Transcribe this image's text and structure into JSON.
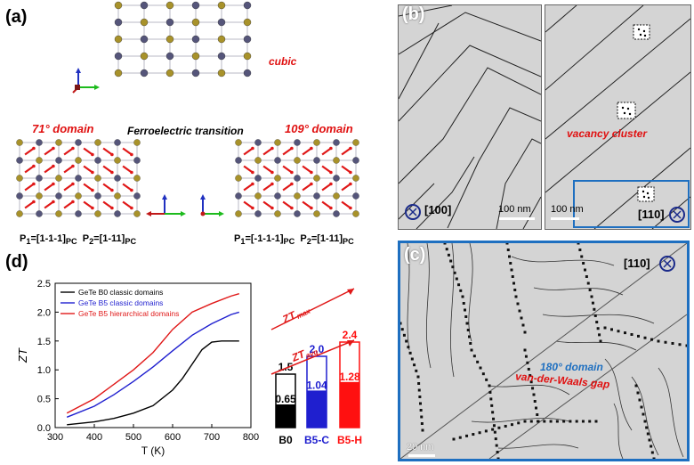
{
  "panel_a": {
    "label": "(a)",
    "cubic_label": "cubic",
    "domain71_label": "71° domain",
    "transition_label": "Ferroelectric transition",
    "domain109_label": "109° domain",
    "left_p1": "P",
    "left_p1_sub": "1",
    "left_p1_val": "=[1-1-1]",
    "left_p1_pc": "PC",
    "left_p2": "P",
    "left_p2_sub": "2",
    "left_p2_val": "=[1-11]",
    "left_p2_pc": "PC",
    "right_p1": "P",
    "right_p1_sub": "1",
    "right_p1_val": "=[-1-1-1]",
    "right_p1_pc": "PC",
    "right_p2": "P",
    "right_p2_sub": "2",
    "right_p2_val": "=[1-11]",
    "right_p2_pc": "PC",
    "colors": {
      "atom_gold": "#a8922a",
      "atom_slate": "#55557a",
      "bond": "#b8b8c4",
      "arrow_red": "#e01818"
    }
  },
  "panel_b": {
    "label": "(b)",
    "scale_left": "100 nm",
    "scale_right": "100 nm",
    "dir_left": "[100]",
    "dir_right": "[110]",
    "vacancy_label": "vacancy cluster"
  },
  "panel_c": {
    "label": "(c)",
    "dir": "[110]",
    "domain180_label": "180° domain",
    "vdw_label": "van-der-Waals gap",
    "scale": "20 nm",
    "border_color": "#1e6fc0"
  },
  "panel_d": {
    "label": "(d)",
    "chart_data": [
      {
        "type": "line",
        "xlabel": "T (K)",
        "ylabel": "ZT",
        "xlim": [
          300,
          800
        ],
        "ylim": [
          0.0,
          2.5
        ],
        "xticks": [
          300,
          400,
          500,
          600,
          700,
          800
        ],
        "yticks": [
          0.0,
          0.5,
          1.0,
          1.5,
          2.0,
          2.5
        ],
        "legend_position": "top-left",
        "series": [
          {
            "name": "GeTe B0 classic domains",
            "color": "#000000",
            "x": [
              330,
              400,
              450,
              500,
              550,
              600,
              625,
              650,
              675,
              700,
              725,
              750,
              770
            ],
            "y": [
              0.05,
              0.1,
              0.16,
              0.25,
              0.38,
              0.65,
              0.85,
              1.1,
              1.35,
              1.48,
              1.5,
              1.5,
              1.5
            ]
          },
          {
            "name": "GeTe B5 classic domains",
            "color": "#1f1fcf",
            "x": [
              330,
              400,
              450,
              500,
              550,
              600,
              650,
              700,
              750,
              770
            ],
            "y": [
              0.18,
              0.37,
              0.57,
              0.8,
              1.05,
              1.33,
              1.6,
              1.8,
              1.96,
              2.0
            ]
          },
          {
            "name": "GeTe B5 hierarchical domains",
            "color": "#e01818",
            "x": [
              330,
              400,
              450,
              500,
              550,
              600,
              650,
              700,
              750,
              770
            ],
            "y": [
              0.25,
              0.5,
              0.75,
              1.0,
              1.3,
              1.7,
              2.0,
              2.15,
              2.28,
              2.32
            ]
          }
        ]
      },
      {
        "type": "bar",
        "categories": [
          "B0",
          "B5-C",
          "B5-H"
        ],
        "zt_max": [
          1.5,
          2.0,
          2.4
        ],
        "zt_avg": [
          0.65,
          1.04,
          1.28
        ],
        "zt_max_labels": [
          "1.5",
          "2.0",
          "2.4"
        ],
        "zt_avg_labels": [
          "0.65",
          "1.04",
          "1.28"
        ],
        "colors": [
          "#000000",
          "#1f1fcf",
          "#ff1010"
        ],
        "annotation_max": "ZT",
        "annotation_max_sub": "max",
        "annotation_avg": "ZT",
        "annotation_avg_sub": "avg"
      }
    ]
  }
}
